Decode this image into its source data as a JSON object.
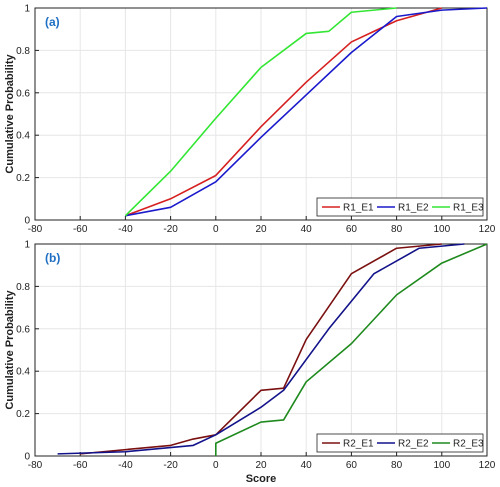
{
  "chart_data": [
    {
      "type": "line",
      "panel_label": "(a)",
      "xlabel": "",
      "ylabel": "Cumulative Probability",
      "xlim": [
        -80,
        120
      ],
      "ylim": [
        0,
        1
      ],
      "xticks": [
        "-80",
        "-60",
        "-40",
        "-20",
        "0",
        "20",
        "40",
        "60",
        "80",
        "100",
        "120"
      ],
      "yticks": [
        "0",
        "0.2",
        "0.4",
        "0.6",
        "0.8",
        "1"
      ],
      "grid": true,
      "legend_position": "bottom-right",
      "series": [
        {
          "name": "R1_E1",
          "color": "#d62020",
          "x": [
            -40,
            -20,
            0,
            20,
            40,
            60,
            80,
            100
          ],
          "y": [
            0.02,
            0.1,
            0.21,
            0.44,
            0.65,
            0.84,
            0.94,
            1.0
          ]
        },
        {
          "name": "R1_E2",
          "color": "#1a1acc",
          "x": [
            -40,
            -20,
            0,
            20,
            40,
            60,
            80,
            100,
            120
          ],
          "y": [
            0.02,
            0.06,
            0.18,
            0.39,
            0.59,
            0.79,
            0.96,
            0.99,
            1.0
          ]
        },
        {
          "name": "R1_E3",
          "color": "#33e633",
          "x": [
            -40,
            -20,
            0,
            20,
            40,
            50,
            60,
            80
          ],
          "y": [
            0.02,
            0.23,
            0.48,
            0.72,
            0.88,
            0.89,
            0.98,
            1.0
          ]
        }
      ]
    },
    {
      "type": "line",
      "panel_label": "(b)",
      "xlabel": "Score",
      "ylabel": "Cumulative Probability",
      "xlim": [
        -80,
        120
      ],
      "ylim": [
        0,
        1
      ],
      "xticks": [
        "-80",
        "-60",
        "-40",
        "-20",
        "0",
        "20",
        "40",
        "60",
        "80",
        "100",
        "120"
      ],
      "yticks": [
        "0",
        "0.2",
        "0.4",
        "0.6",
        "0.8",
        "1"
      ],
      "grid": true,
      "legend_position": "bottom-right",
      "series": [
        {
          "name": "R2_E1",
          "color": "#7a1010",
          "x": [
            -60,
            -20,
            -10,
            0,
            20,
            30,
            40,
            60,
            80,
            100
          ],
          "y": [
            0.01,
            0.05,
            0.08,
            0.1,
            0.31,
            0.32,
            0.55,
            0.86,
            0.98,
            1.0
          ]
        },
        {
          "name": "R2_E2",
          "color": "#12128a",
          "x": [
            -70,
            -40,
            -10,
            0,
            20,
            30,
            50,
            70,
            90,
            110
          ],
          "y": [
            0.01,
            0.02,
            0.05,
            0.1,
            0.23,
            0.31,
            0.6,
            0.86,
            0.98,
            1.0
          ]
        },
        {
          "name": "R2_E3",
          "color": "#1e8a1e",
          "x": [
            0,
            0,
            20,
            30,
            40,
            60,
            80,
            100,
            120
          ],
          "y": [
            0.0,
            0.06,
            0.16,
            0.17,
            0.35,
            0.53,
            0.76,
            0.91,
            1.0
          ]
        }
      ]
    }
  ]
}
